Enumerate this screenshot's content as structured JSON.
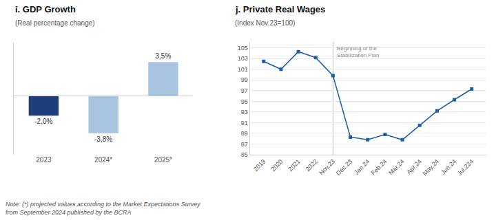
{
  "chart_data": [
    {
      "type": "bar",
      "title": "i. GDP Growth",
      "subtitle": "(Real percentage change)",
      "categories": [
        "2023",
        "2024*",
        "2025*"
      ],
      "values": [
        -2.0,
        -3.8,
        3.5
      ],
      "value_labels": [
        "-2,0%",
        "-3,8%",
        "3,5%"
      ],
      "data_labels": true,
      "colors": [
        "#1f3d7a",
        "#a8c4e0",
        "#a8c4e0"
      ],
      "ylim": [
        -6,
        5.5
      ],
      "tick_labels": "x",
      "grid": false,
      "note": "Note: (*) projected values according to the Market Expectations Survey\nfrom September 2024 published by the BCRA"
    },
    {
      "type": "line",
      "title": "j. Private Real Wages",
      "subtitle": "(Index Nov.23=100)",
      "categories": [
        "2019",
        "2020",
        "2021",
        "2022",
        "Nov.23",
        "Dec.23",
        "Jan.24",
        "Feb.24",
        "Mar.24",
        "Apr.24",
        "May.24",
        "Jun.24",
        "Jul.224"
      ],
      "values": [
        102.5,
        101.0,
        104.3,
        103.2,
        99.8,
        88.3,
        87.8,
        88.8,
        87.8,
        90.5,
        93.2,
        95.3,
        97.3
      ],
      "color": "#1f5fa6",
      "marker": "square",
      "ylim": [
        85,
        106
      ],
      "yticks": [
        85,
        87,
        89,
        91,
        93,
        95,
        97,
        99,
        101,
        103,
        105
      ],
      "grid": true,
      "vline": {
        "category": "Nov.23",
        "label": "Beginning of the\nStabilization Plan"
      }
    }
  ]
}
